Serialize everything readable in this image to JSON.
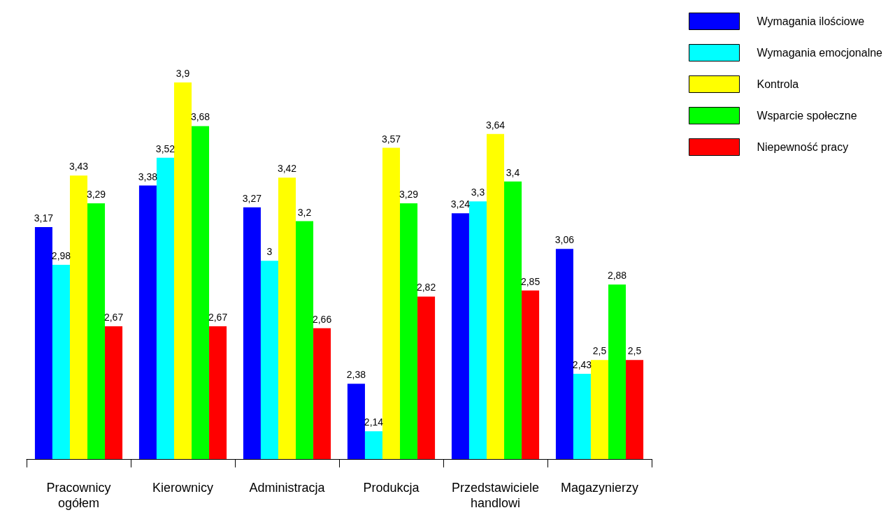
{
  "chart_data": {
    "type": "bar",
    "categories": [
      "Pracownicy\nogółem",
      "Kierownicy",
      "Administracja",
      "Produkcja",
      "Przedstawiciele\nhandlowi",
      "Magazynierzy"
    ],
    "ylim": [
      2,
      3.9
    ],
    "tick_labels": "x",
    "grid": false,
    "legend": "top right",
    "series": [
      {
        "name": "Wymagania ilościowe",
        "color": "#0000ff",
        "values": [
          3.17,
          3.38,
          3.27,
          2.38,
          3.24,
          3.06
        ],
        "value_labels": [
          "3,17",
          "3,38",
          "3,27",
          "2,38",
          "3,24",
          "3,06"
        ]
      },
      {
        "name": "Wymagania emocjonalne",
        "color": "#00ffff",
        "values": [
          2.98,
          3.52,
          3,
          2.14,
          3.3,
          2.43
        ],
        "value_labels": [
          "2,98",
          "3,52",
          "3",
          "2,14",
          "3,3",
          "2,43"
        ]
      },
      {
        "name": "Kontrola",
        "color": "#ffff00",
        "values": [
          3.43,
          3.9,
          3.42,
          3.57,
          3.64,
          2.5
        ],
        "value_labels": [
          "3,43",
          "3,9",
          "3,42",
          "3,57",
          "3,64",
          "2,5"
        ]
      },
      {
        "name": "Wsparcie społeczne",
        "color": "#00ff00",
        "values": [
          3.29,
          3.68,
          3.2,
          3.29,
          3.4,
          2.88
        ],
        "value_labels": [
          "3,29",
          "3,68",
          "3,2",
          "3,29",
          "3,4",
          "2,88"
        ]
      },
      {
        "name": "Niepewność pracy",
        "color": "#ff0000",
        "values": [
          2.67,
          2.67,
          2.66,
          2.82,
          2.85,
          2.5
        ],
        "value_labels": [
          "2,67",
          "2,67",
          "2,66",
          "2,82",
          "2,85",
          "2,5"
        ]
      }
    ]
  }
}
